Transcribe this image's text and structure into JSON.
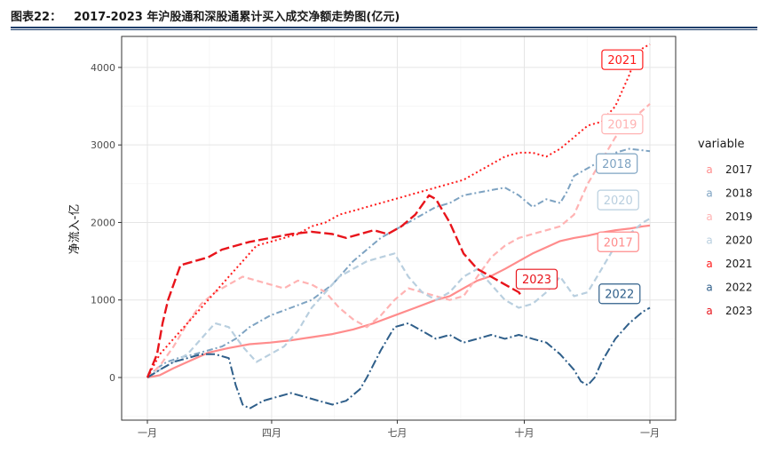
{
  "header": {
    "figure_number": "图表22：",
    "title": "2017-2023 年沪股通和深股通累计买入成交净额走势图(亿元)"
  },
  "chart_data": {
    "type": "line",
    "title": "2017-2023 年沪股通和深股通累计买入成交净额走势图(亿元)",
    "ylabel": "净流入-亿",
    "xlabel": "",
    "x_unit": "day of year",
    "xlim": [
      1,
      365
    ],
    "ylim": [
      -550,
      4400
    ],
    "x_ticks": [
      {
        "value": 1,
        "label": "一月"
      },
      {
        "value": 91,
        "label": "四月"
      },
      {
        "value": 182,
        "label": "七月"
      },
      {
        "value": 274,
        "label": "十月"
      },
      {
        "value": 365,
        "label": "一月"
      }
    ],
    "y_ticks": [
      0,
      1000,
      2000,
      3000,
      4000
    ],
    "grid": true,
    "legend": {
      "title": "variable",
      "position": "right",
      "key_glyph": "a"
    },
    "series": [
      {
        "name": "2017",
        "color": "#ff8c8c",
        "dash": "solid",
        "width": 2.2,
        "points": [
          [
            1,
            0
          ],
          [
            10,
            30
          ],
          [
            20,
            120
          ],
          [
            30,
            200
          ],
          [
            45,
            320
          ],
          [
            60,
            380
          ],
          [
            75,
            430
          ],
          [
            90,
            450
          ],
          [
            105,
            480
          ],
          [
            120,
            520
          ],
          [
            135,
            560
          ],
          [
            150,
            620
          ],
          [
            165,
            700
          ],
          [
            180,
            800
          ],
          [
            195,
            900
          ],
          [
            210,
            1000
          ],
          [
            220,
            1050
          ],
          [
            230,
            1150
          ],
          [
            240,
            1250
          ],
          [
            250,
            1310
          ],
          [
            260,
            1400
          ],
          [
            270,
            1500
          ],
          [
            280,
            1600
          ],
          [
            290,
            1680
          ],
          [
            300,
            1760
          ],
          [
            310,
            1800
          ],
          [
            320,
            1830
          ],
          [
            330,
            1870
          ],
          [
            340,
            1900
          ],
          [
            350,
            1920
          ],
          [
            360,
            1950
          ],
          [
            365,
            1960
          ]
        ]
      },
      {
        "name": "2018",
        "color": "#7ea3c2",
        "dash": "dash-dot",
        "width": 2,
        "points": [
          [
            1,
            0
          ],
          [
            8,
            120
          ],
          [
            15,
            200
          ],
          [
            25,
            260
          ],
          [
            35,
            300
          ],
          [
            45,
            350
          ],
          [
            55,
            400
          ],
          [
            65,
            500
          ],
          [
            75,
            650
          ],
          [
            90,
            800
          ],
          [
            105,
            900
          ],
          [
            120,
            1000
          ],
          [
            135,
            1200
          ],
          [
            150,
            1500
          ],
          [
            160,
            1650
          ],
          [
            170,
            1800
          ],
          [
            180,
            1900
          ],
          [
            190,
            2000
          ],
          [
            200,
            2100
          ],
          [
            210,
            2200
          ],
          [
            220,
            2250
          ],
          [
            230,
            2350
          ],
          [
            245,
            2400
          ],
          [
            260,
            2450
          ],
          [
            270,
            2350
          ],
          [
            280,
            2200
          ],
          [
            290,
            2300
          ],
          [
            300,
            2250
          ],
          [
            305,
            2400
          ],
          [
            310,
            2600
          ],
          [
            320,
            2700
          ],
          [
            330,
            2800
          ],
          [
            340,
            2900
          ],
          [
            350,
            2950
          ],
          [
            360,
            2930
          ],
          [
            365,
            2920
          ]
        ]
      },
      {
        "name": "2019",
        "color": "#ffb3b3",
        "dash": "dash",
        "width": 2.2,
        "points": [
          [
            1,
            0
          ],
          [
            10,
            150
          ],
          [
            20,
            400
          ],
          [
            30,
            700
          ],
          [
            40,
            950
          ],
          [
            50,
            1100
          ],
          [
            60,
            1200
          ],
          [
            70,
            1300
          ],
          [
            80,
            1250
          ],
          [
            90,
            1200
          ],
          [
            100,
            1150
          ],
          [
            110,
            1250
          ],
          [
            120,
            1200
          ],
          [
            130,
            1100
          ],
          [
            140,
            900
          ],
          [
            150,
            750
          ],
          [
            160,
            650
          ],
          [
            170,
            800
          ],
          [
            180,
            1000
          ],
          [
            190,
            1150
          ],
          [
            200,
            1100
          ],
          [
            210,
            1050
          ],
          [
            220,
            1000
          ],
          [
            230,
            1050
          ],
          [
            240,
            1300
          ],
          [
            250,
            1550
          ],
          [
            260,
            1700
          ],
          [
            270,
            1800
          ],
          [
            280,
            1850
          ],
          [
            290,
            1900
          ],
          [
            300,
            1950
          ],
          [
            310,
            2100
          ],
          [
            320,
            2500
          ],
          [
            330,
            2800
          ],
          [
            340,
            3100
          ],
          [
            350,
            3300
          ],
          [
            360,
            3450
          ],
          [
            365,
            3530
          ]
        ]
      },
      {
        "name": "2020",
        "color": "#b9cfdf",
        "dash": "dash",
        "width": 2.2,
        "points": [
          [
            1,
            0
          ],
          [
            10,
            100
          ],
          [
            20,
            200
          ],
          [
            30,
            300
          ],
          [
            40,
            500
          ],
          [
            50,
            700
          ],
          [
            60,
            650
          ],
          [
            70,
            400
          ],
          [
            80,
            200
          ],
          [
            90,
            300
          ],
          [
            100,
            400
          ],
          [
            110,
            600
          ],
          [
            120,
            900
          ],
          [
            130,
            1100
          ],
          [
            140,
            1300
          ],
          [
            150,
            1400
          ],
          [
            160,
            1500
          ],
          [
            170,
            1550
          ],
          [
            180,
            1600
          ],
          [
            190,
            1300
          ],
          [
            200,
            1100
          ],
          [
            210,
            1000
          ],
          [
            220,
            1100
          ],
          [
            230,
            1300
          ],
          [
            240,
            1400
          ],
          [
            250,
            1200
          ],
          [
            260,
            1000
          ],
          [
            270,
            900
          ],
          [
            280,
            950
          ],
          [
            290,
            1100
          ],
          [
            300,
            1300
          ],
          [
            310,
            1050
          ],
          [
            320,
            1100
          ],
          [
            330,
            1400
          ],
          [
            340,
            1700
          ],
          [
            350,
            1850
          ],
          [
            360,
            2000
          ],
          [
            365,
            2050
          ]
        ]
      },
      {
        "name": "2021",
        "color": "#ff1a1a",
        "dash": "dot",
        "width": 2,
        "points": [
          [
            1,
            0
          ],
          [
            10,
            300
          ],
          [
            20,
            500
          ],
          [
            30,
            700
          ],
          [
            40,
            900
          ],
          [
            50,
            1100
          ],
          [
            60,
            1300
          ],
          [
            70,
            1500
          ],
          [
            80,
            1700
          ],
          [
            90,
            1750
          ],
          [
            100,
            1800
          ],
          [
            110,
            1850
          ],
          [
            120,
            1950
          ],
          [
            130,
            2000
          ],
          [
            140,
            2100
          ],
          [
            150,
            2150
          ],
          [
            160,
            2200
          ],
          [
            170,
            2250
          ],
          [
            180,
            2300
          ],
          [
            190,
            2350
          ],
          [
            200,
            2400
          ],
          [
            210,
            2450
          ],
          [
            220,
            2500
          ],
          [
            230,
            2550
          ],
          [
            240,
            2650
          ],
          [
            250,
            2750
          ],
          [
            260,
            2850
          ],
          [
            270,
            2900
          ],
          [
            280,
            2900
          ],
          [
            290,
            2850
          ],
          [
            300,
            2950
          ],
          [
            310,
            3100
          ],
          [
            320,
            3250
          ],
          [
            330,
            3300
          ],
          [
            340,
            3500
          ],
          [
            350,
            3900
          ],
          [
            355,
            4150
          ],
          [
            360,
            4250
          ],
          [
            365,
            4300
          ]
        ]
      },
      {
        "name": "2022",
        "color": "#2f5f8a",
        "dash": "long-dash-dot",
        "width": 2,
        "points": [
          [
            1,
            0
          ],
          [
            10,
            100
          ],
          [
            20,
            200
          ],
          [
            30,
            250
          ],
          [
            40,
            300
          ],
          [
            50,
            300
          ],
          [
            60,
            250
          ],
          [
            65,
            -100
          ],
          [
            70,
            -350
          ],
          [
            75,
            -400
          ],
          [
            85,
            -300
          ],
          [
            95,
            -250
          ],
          [
            105,
            -200
          ],
          [
            115,
            -250
          ],
          [
            125,
            -300
          ],
          [
            135,
            -350
          ],
          [
            145,
            -300
          ],
          [
            155,
            -150
          ],
          [
            160,
            0
          ],
          [
            170,
            350
          ],
          [
            180,
            650
          ],
          [
            190,
            700
          ],
          [
            200,
            600
          ],
          [
            210,
            500
          ],
          [
            220,
            550
          ],
          [
            230,
            450
          ],
          [
            240,
            500
          ],
          [
            250,
            550
          ],
          [
            260,
            500
          ],
          [
            270,
            550
          ],
          [
            280,
            500
          ],
          [
            290,
            450
          ],
          [
            300,
            300
          ],
          [
            310,
            100
          ],
          [
            315,
            -50
          ],
          [
            320,
            -100
          ],
          [
            325,
            0
          ],
          [
            330,
            200
          ],
          [
            340,
            500
          ],
          [
            350,
            700
          ],
          [
            360,
            850
          ],
          [
            365,
            900
          ]
        ]
      },
      {
        "name": "2023",
        "color": "#e8141b",
        "dash": "long-dash",
        "width": 2.4,
        "points": [
          [
            1,
            0
          ],
          [
            8,
            300
          ],
          [
            12,
            700
          ],
          [
            16,
            1000
          ],
          [
            20,
            1200
          ],
          [
            25,
            1450
          ],
          [
            35,
            1500
          ],
          [
            45,
            1550
          ],
          [
            55,
            1650
          ],
          [
            65,
            1700
          ],
          [
            75,
            1750
          ],
          [
            90,
            1800
          ],
          [
            105,
            1850
          ],
          [
            120,
            1880
          ],
          [
            135,
            1850
          ],
          [
            145,
            1800
          ],
          [
            155,
            1850
          ],
          [
            165,
            1900
          ],
          [
            175,
            1850
          ],
          [
            185,
            1950
          ],
          [
            195,
            2100
          ],
          [
            205,
            2350
          ],
          [
            210,
            2300
          ],
          [
            220,
            2000
          ],
          [
            230,
            1600
          ],
          [
            240,
            1400
          ],
          [
            250,
            1300
          ],
          [
            260,
            1200
          ],
          [
            270,
            1100
          ],
          [
            272,
            1050
          ]
        ]
      }
    ],
    "end_labels": [
      {
        "text": "2021",
        "series": "2021",
        "x": 345,
        "y": 4100
      },
      {
        "text": "2019",
        "series": "2019",
        "x": 345,
        "y": 3270
      },
      {
        "text": "2018",
        "series": "2018",
        "x": 341,
        "y": 2760
      },
      {
        "text": "2020",
        "series": "2020",
        "x": 342,
        "y": 2290
      },
      {
        "text": "2017",
        "series": "2017",
        "x": 342,
        "y": 1750
      },
      {
        "text": "2023",
        "series": "2023",
        "x": 283,
        "y": 1270
      },
      {
        "text": "2022",
        "series": "2022",
        "x": 343,
        "y": 1080
      }
    ]
  }
}
